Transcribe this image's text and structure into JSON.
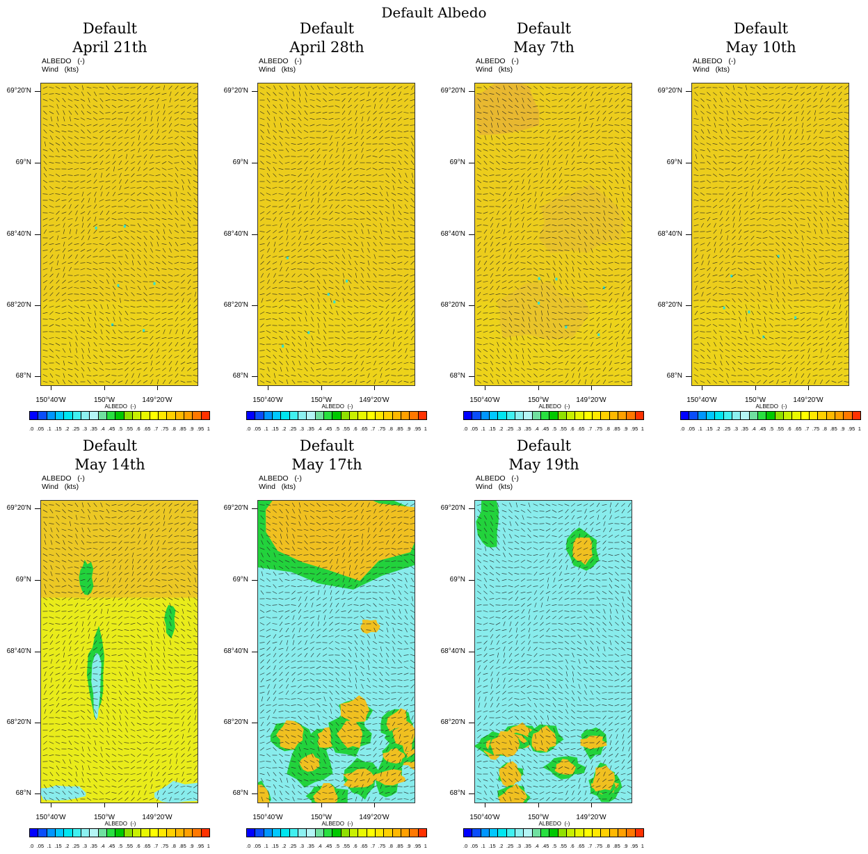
{
  "figure_title": "Default Albedo",
  "field_labels": {
    "line1": "ALBEDO   (-)",
    "line2": "Wind   (kts)"
  },
  "lat_labels": [
    "69°20'N",
    "69°N",
    "68°40'N",
    "68°20'N",
    "68°N"
  ],
  "lon_labels": [
    "150°40'W",
    "150°W",
    "149°20'W"
  ],
  "colorbar": {
    "title": "ALBEDO  (-)",
    "labels": [
      ".0",
      ".05",
      ".1",
      ".15",
      ".2",
      ".25",
      ".3",
      ".35",
      ".4",
      ".45",
      ".5",
      ".55",
      ".6",
      ".65",
      ".7",
      ".75",
      ".8",
      ".85",
      ".9",
      ".95",
      "1"
    ],
    "colors": [
      "#0000ff",
      "#0a4dfa",
      "#0096ff",
      "#00c8ff",
      "#00e6f0",
      "#40f0f0",
      "#8cf0f0",
      "#b4f5f5",
      "#70e0a0",
      "#28e040",
      "#00c800",
      "#90e000",
      "#c8f000",
      "#e8f800",
      "#ffff00",
      "#ffe800",
      "#ffd000",
      "#ffb800",
      "#ffa000",
      "#ff7800",
      "#ff3200"
    ]
  },
  "palette": {
    "snow_free_yellow": "#e8ee1a",
    "orange_high": "#f0c020",
    "cyan_snowmelt": "#88ecec",
    "green_edge": "#22d23c"
  },
  "panels": [
    {
      "label_top": "Default",
      "label_date": "April 21th",
      "coverage": "full-yellow"
    },
    {
      "label_top": "Default",
      "label_date": "April 28th",
      "coverage": "full-yellow"
    },
    {
      "label_top": "Default",
      "label_date": "May 7th",
      "coverage": "full-yellow"
    },
    {
      "label_top": "Default",
      "label_date": "May 10th",
      "coverage": "full-yellow"
    },
    {
      "label_top": "Default",
      "label_date": "May 14th",
      "coverage": "mostly-yellow"
    },
    {
      "label_top": "Default",
      "label_date": "May 17th",
      "coverage": "mixed"
    },
    {
      "label_top": "Default",
      "label_date": "May 19th",
      "coverage": "mostly-cyan"
    }
  ]
}
